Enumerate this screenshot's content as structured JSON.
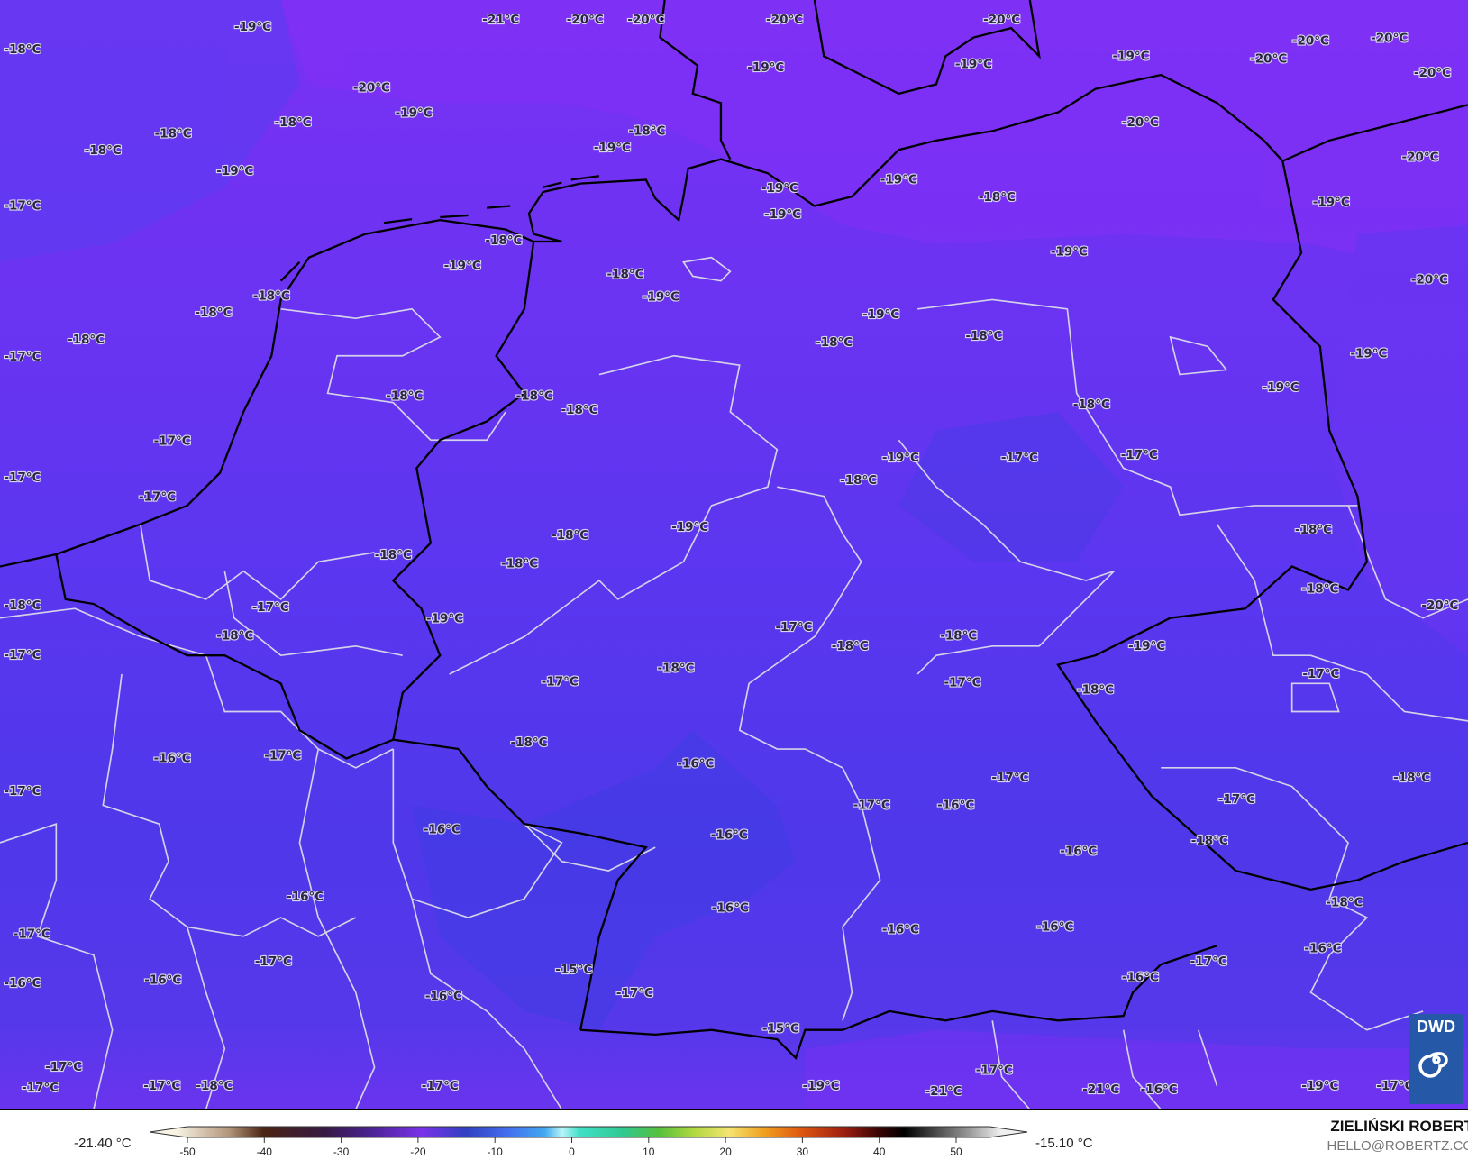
{
  "map": {
    "labels": [
      "-19°C",
      "-21°C",
      "-20°C",
      "-20°C",
      "-20°C",
      "-20°C",
      "-18°C",
      "-19°C",
      "-19°C",
      "-19°C",
      "-20°C",
      "-20°C",
      "-20°C",
      "-20°C",
      "-20°C",
      "-19°C",
      "-18°C",
      "-18°C",
      "-18°C",
      "-19°C",
      "-18°C",
      "-19°C",
      "-20°C",
      "-20°C",
      "-19°C",
      "-19°C",
      "-18°C",
      "-19°C",
      "-17°C",
      "-19°C",
      "-18°C",
      "-19°C",
      "-19°C",
      "-18°C",
      "-20°C",
      "-19°C",
      "-18°C",
      "-18°C",
      "-19°C",
      "-18°C",
      "-18°C",
      "-18°C",
      "-17°C",
      "-19°C",
      "-19°C",
      "-18°C",
      "-18°C",
      "-18°C",
      "-18°C",
      "-17°C",
      "-19°C",
      "-17°C",
      "-17°C",
      "-17°C",
      "-18°C",
      "-17°C",
      "-19°C",
      "-18°C",
      "-18°C",
      "-18°C",
      "-18°C",
      "-18°C",
      "-17°C",
      "-18°C",
      "-20°C",
      "-19°C",
      "-17°C",
      "-18°C",
      "-18°C",
      "-18°C",
      "-19°C",
      "-17°C",
      "-18°C",
      "-17°C",
      "-17°C",
      "-17°C",
      "-18°C",
      "-18°C",
      "-16°C",
      "-17°C",
      "-16°C",
      "-17°C",
      "-18°C",
      "-17°C",
      "-17°C",
      "-16°C",
      "-17°C",
      "-16°C",
      "-16°C",
      "-18°C",
      "-16°C",
      "-18°C",
      "-16°C",
      "-16°C",
      "-16°C",
      "-16°C",
      "-17°C",
      "-17°C",
      "-16°C",
      "-17°C",
      "-15°C",
      "-16°C",
      "-16°C",
      "-16°C",
      "-16°C",
      "-17°C",
      "-15°C",
      "-17°C",
      "-17°C",
      "-17°C",
      "-17°C",
      "-18°C",
      "-17°C",
      "-19°C",
      "-21°C",
      "-21°C",
      "-16°C",
      "-19°C",
      "-17°C"
    ],
    "logo": {
      "text": "DWD",
      "color": "#2658a8"
    }
  },
  "legend": {
    "min_value": "-21.40 °C",
    "max_value": "-15.10 °C",
    "ticks": [
      "-50",
      "-40",
      "-30",
      "-20",
      "-10",
      "0",
      "10",
      "20",
      "30",
      "40",
      "50"
    ]
  },
  "credits": {
    "author": "ZIELIŃSKI ROBERT",
    "email": "HELLO@ROBERTZ.CO"
  },
  "colors": {
    "north": "#7a31f4",
    "central": "#5c36f0",
    "south": "#4f38ea",
    "coastline": "#000000",
    "region_border": "#d0d0e0"
  }
}
